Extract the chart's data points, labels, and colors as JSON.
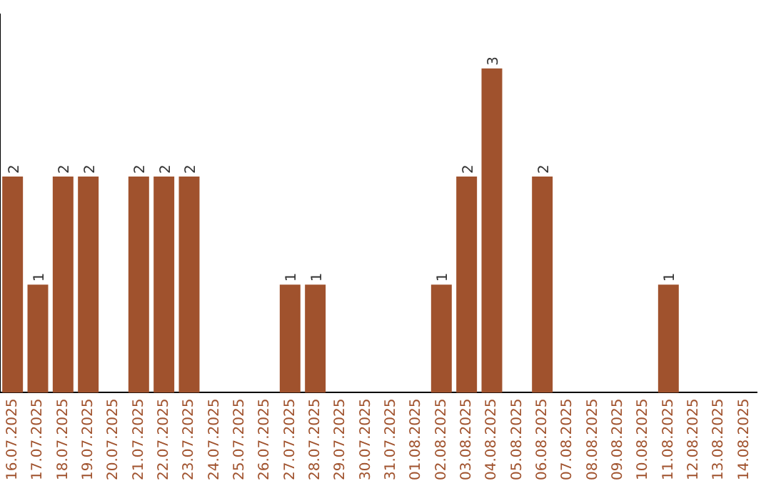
{
  "chart_data": {
    "type": "bar",
    "categories": [
      "16.07.2025",
      "17.07.2025",
      "18.07.2025",
      "19.07.2025",
      "20.07.2025",
      "21.07.2025",
      "22.07.2025",
      "23.07.2025",
      "24.07.2025",
      "25.07.2025",
      "26.07.2025",
      "27.07.2025",
      "28.07.2025",
      "29.07.2025",
      "30.07.2025",
      "31.07.2025",
      "01.08.2025",
      "02.08.2025",
      "03.08.2025",
      "04.08.2025",
      "05.08.2025",
      "06.08.2025",
      "07.08.2025",
      "08.08.2025",
      "09.08.2025",
      "10.08.2025",
      "11.08.2025",
      "12.08.2025",
      "13.08.2025",
      "14.08.2025"
    ],
    "values": [
      2,
      1,
      2,
      2,
      0,
      2,
      2,
      2,
      0,
      0,
      0,
      1,
      1,
      0,
      0,
      0,
      0,
      1,
      2,
      3,
      0,
      2,
      0,
      0,
      0,
      0,
      1,
      0,
      0,
      0
    ],
    "value_labels": [
      "2",
      "1",
      "2",
      "2",
      null,
      "2",
      "2",
      "2",
      null,
      null,
      null,
      "1",
      "1",
      null,
      null,
      null,
      null,
      "1",
      "2",
      "3",
      null,
      "2",
      null,
      null,
      null,
      null,
      "1",
      null,
      null,
      null
    ],
    "color": "#a0522d",
    "grid": false,
    "legend": false,
    "tick_labels": "x"
  }
}
